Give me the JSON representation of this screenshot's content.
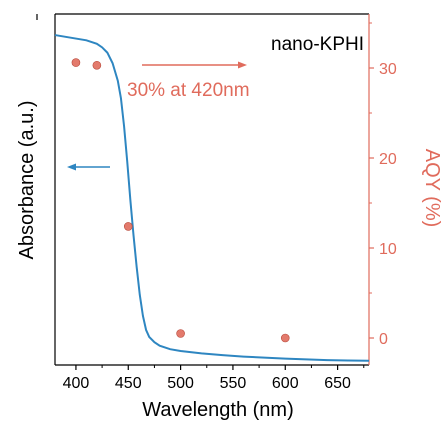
{
  "chart_data": {
    "type": "line",
    "title": "",
    "sample_label": "nano-KPHI",
    "annotation": "30% at 420nm",
    "xlabel": "Wavelength (nm)",
    "ylabel_left": "Absorbance (a.u.)",
    "ylabel_right": "AQY (%)",
    "xlim": [
      380,
      680
    ],
    "ylim_right": [
      -3,
      36
    ],
    "ylim_left": [
      0,
      1
    ],
    "x_ticks": [
      400,
      450,
      500,
      550,
      600,
      650
    ],
    "x_tick_labels": [
      "400",
      "450",
      "500",
      "550",
      "600",
      "650"
    ],
    "y_right_ticks": [
      0,
      10,
      20,
      30
    ],
    "y_right_tick_labels": [
      "0",
      "10",
      "20",
      "30"
    ],
    "left_axis_tick_labels": false,
    "grid": false,
    "colors": {
      "absorbance": "#2e86c1",
      "aqy": "#e06b5c",
      "axis_right": "#e06b5c",
      "axis": "#000000"
    },
    "series": [
      {
        "axis": "left",
        "style": "line",
        "x": [
          380,
          390,
          400,
          410,
          420,
          425,
          430,
          435,
          440,
          443,
          446,
          449,
          452,
          455,
          458,
          461,
          464,
          467,
          470,
          475,
          480,
          490,
          500,
          520,
          540,
          560,
          580,
          600,
          620,
          640,
          660,
          680
        ],
        "y": [
          0.94,
          0.935,
          0.93,
          0.925,
          0.915,
          0.905,
          0.89,
          0.86,
          0.81,
          0.76,
          0.68,
          0.58,
          0.47,
          0.37,
          0.28,
          0.2,
          0.14,
          0.1,
          0.08,
          0.065,
          0.055,
          0.045,
          0.04,
          0.033,
          0.028,
          0.024,
          0.021,
          0.018,
          0.016,
          0.014,
          0.013,
          0.012
        ]
      },
      {
        "axis": "right",
        "style": "points",
        "x": [
          400,
          420,
          450,
          500,
          600
        ],
        "y": [
          30.6,
          30.3,
          12.4,
          0.5,
          0.0
        ]
      }
    ]
  }
}
